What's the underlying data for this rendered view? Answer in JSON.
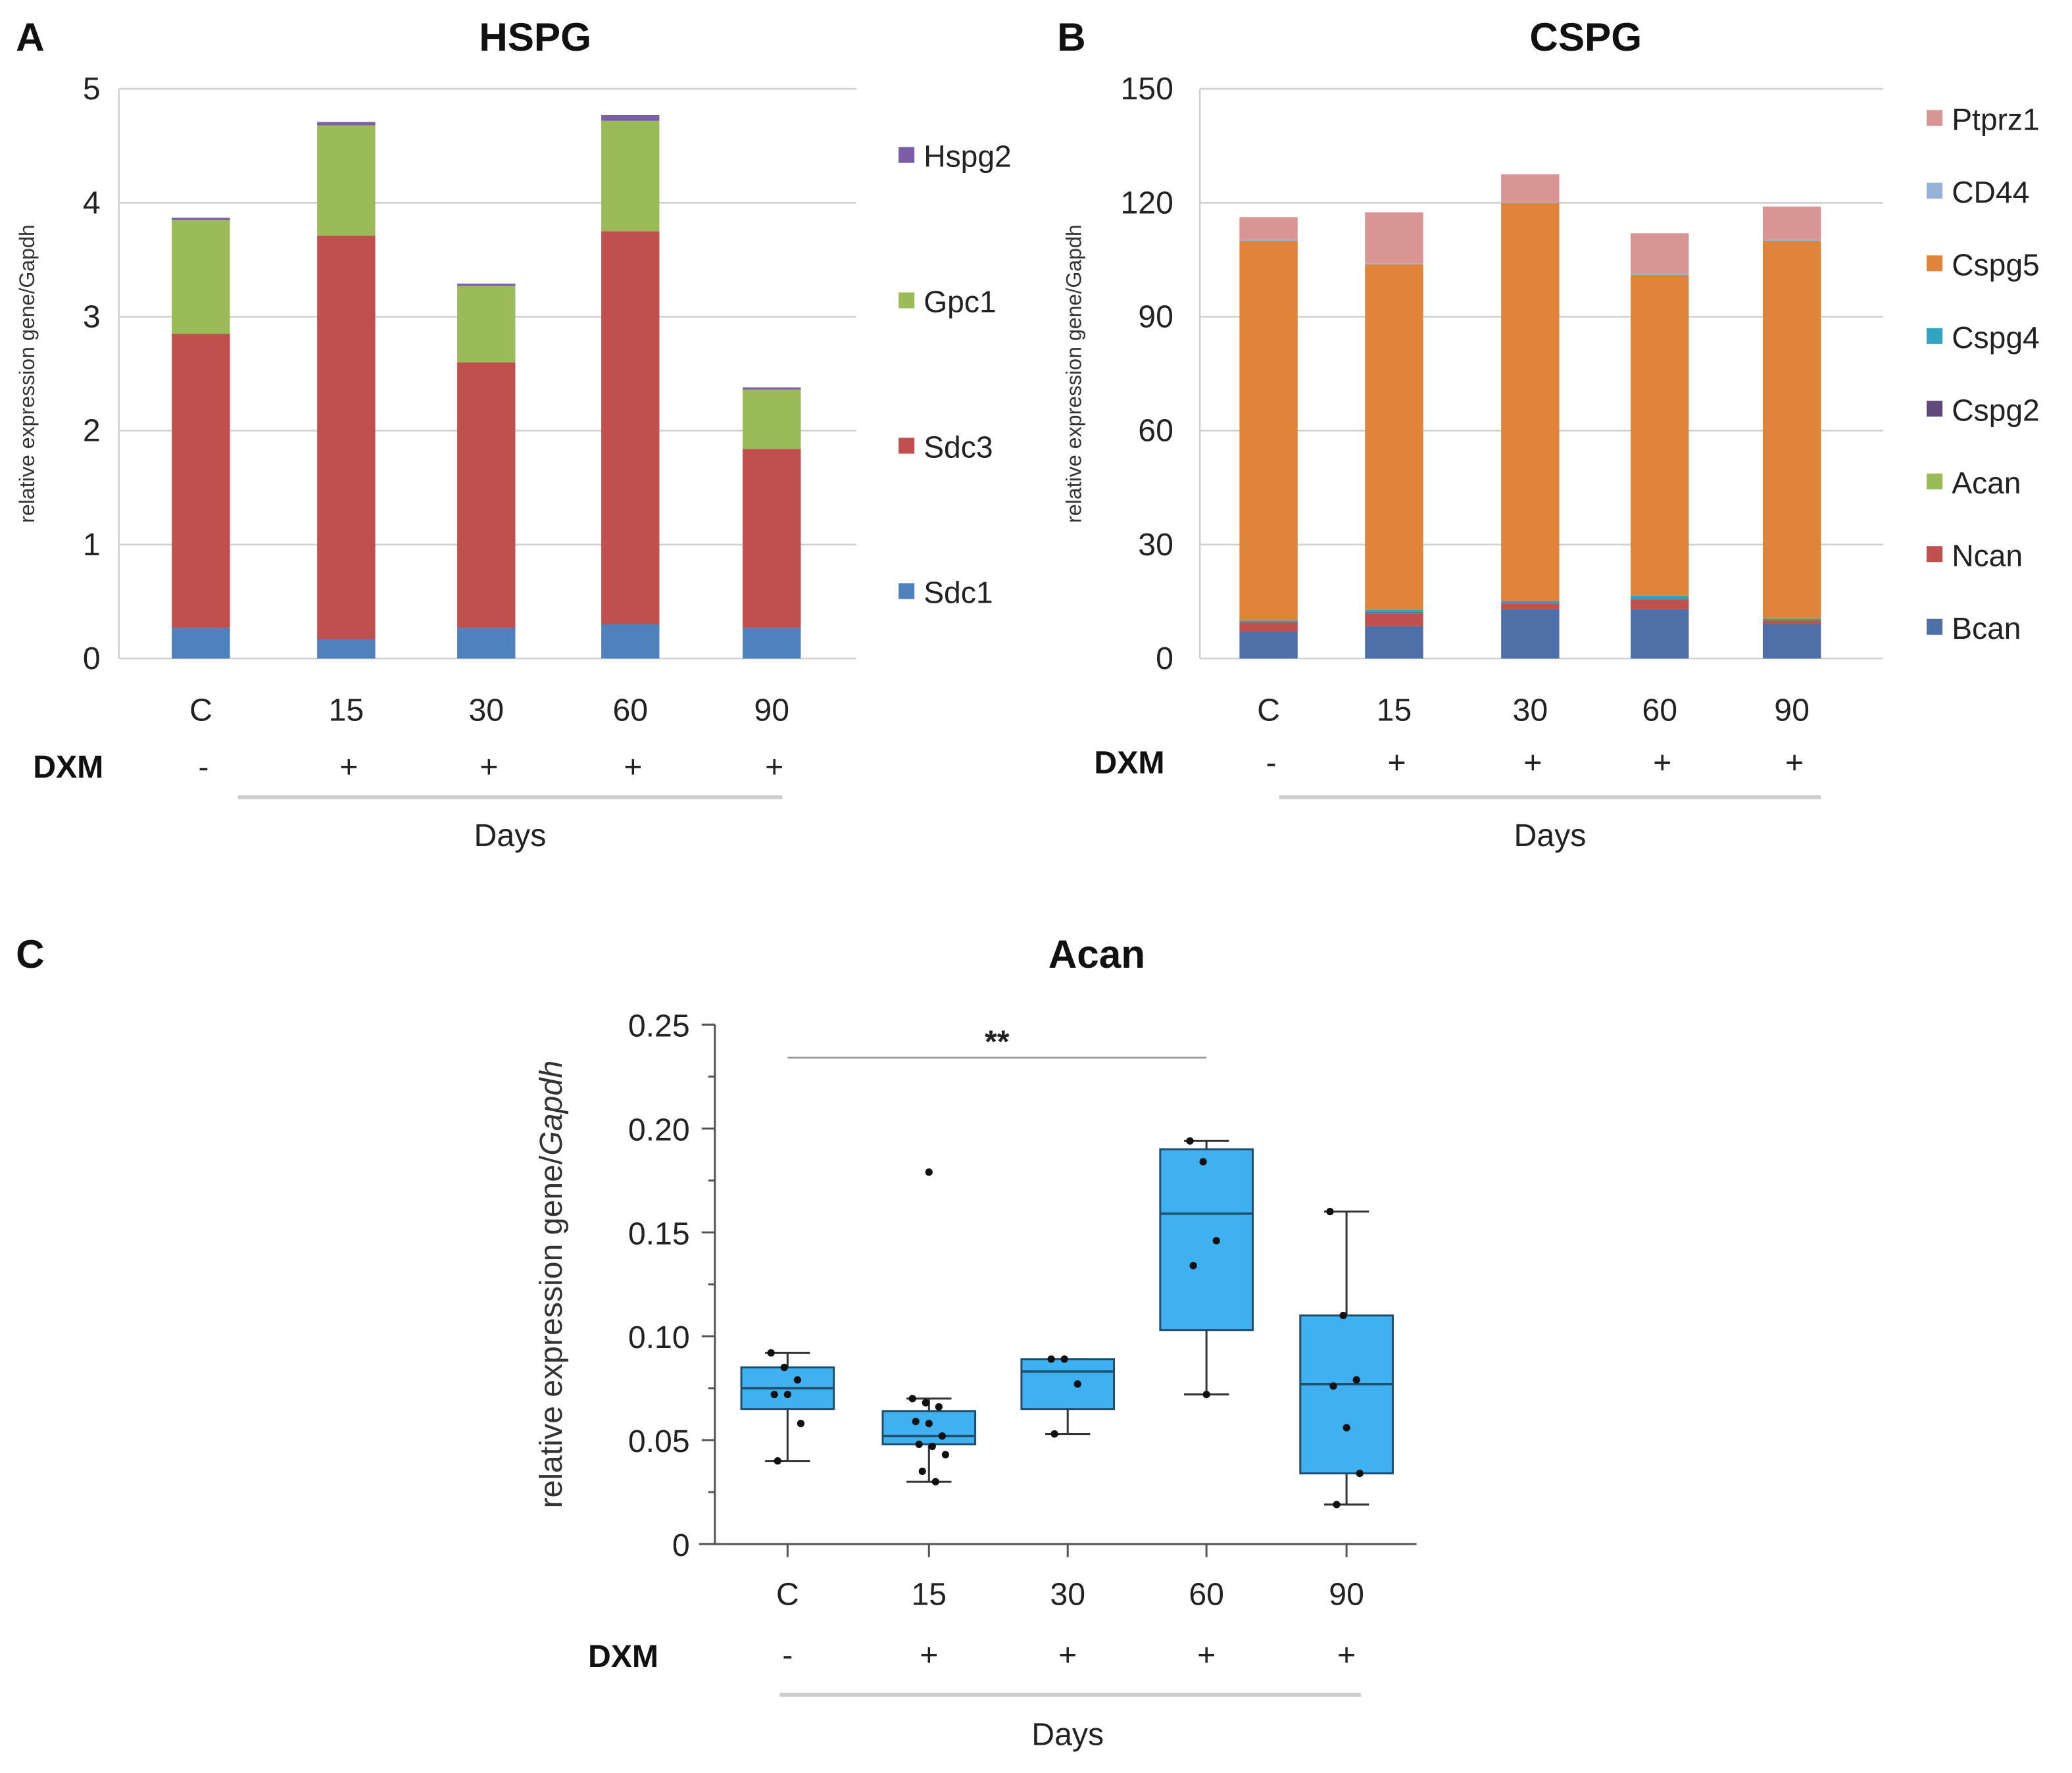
{
  "colors": {
    "Hspg2": "#7b5ea7",
    "Gpc1": "#9bbb59",
    "Sdc3": "#c0504d",
    "Sdc1": "#4f81bd",
    "Ptprz1": "#d99594",
    "CD44": "#95b3d7",
    "Cspg5": "#e0843a",
    "Cspg4": "#31a4c4",
    "Cspg2": "#604a7b",
    "Acan": "#9bbb59",
    "Ncan": "#c0504d",
    "Bcan": "#4f6fa8",
    "box_fill": "#3fb1f0",
    "box_stroke": "#1f4e6e"
  },
  "chart_data": [
    {
      "panel": "A",
      "type": "bar",
      "stacked": true,
      "title": "HSPG",
      "ylabel": "relative expression gene/Gapdh",
      "ylim": [
        0,
        5
      ],
      "yticks": [
        "0",
        "1",
        "2",
        "3",
        "4",
        "5"
      ],
      "categories": [
        "C",
        "15",
        "30",
        "60",
        "90"
      ],
      "dxm": [
        "-",
        "+",
        "+",
        "+",
        "+"
      ],
      "dxm_label": "DXM",
      "xlabel": "Days",
      "grid": true,
      "legend_position": "right",
      "legend": [
        "Hspg2",
        "Gpc1",
        "Sdc3",
        "Sdc1"
      ],
      "series": [
        {
          "name": "Sdc1",
          "values": [
            0.27,
            0.17,
            0.27,
            0.3,
            0.27
          ]
        },
        {
          "name": "Sdc3",
          "values": [
            2.58,
            3.54,
            2.33,
            3.45,
            1.57
          ]
        },
        {
          "name": "Gpc1",
          "values": [
            1.0,
            0.97,
            0.67,
            0.97,
            0.52
          ]
        },
        {
          "name": "Hspg2",
          "values": [
            0.02,
            0.03,
            0.02,
            0.05,
            0.02
          ]
        }
      ]
    },
    {
      "panel": "B",
      "type": "bar",
      "stacked": true,
      "title": "CSPG",
      "ylabel": "relative expression gene/Gapdh",
      "ylim": [
        0,
        150
      ],
      "yticks": [
        "0",
        "30",
        "60",
        "90",
        "120",
        "150"
      ],
      "categories": [
        "C",
        "15",
        "30",
        "60",
        "90"
      ],
      "dxm": [
        "-",
        "+",
        "+",
        "+",
        "+"
      ],
      "dxm_label": "DXM",
      "xlabel": "Days",
      "grid": true,
      "legend_position": "right",
      "legend": [
        "Ptprz1",
        "CD44",
        "Cspg5",
        "Cspg4",
        "Cspg2",
        "Acan",
        "Ncan",
        "Bcan"
      ],
      "series": [
        {
          "name": "Bcan",
          "values": [
            7,
            8.5,
            13,
            13,
            9
          ]
        },
        {
          "name": "Ncan",
          "values": [
            2.5,
            3.5,
            1.5,
            2.5,
            1
          ]
        },
        {
          "name": "Acan",
          "values": [
            0.1,
            0.1,
            0.1,
            0.1,
            0.1
          ]
        },
        {
          "name": "Cspg2",
          "values": [
            0.1,
            0.1,
            0.1,
            0.1,
            0.1
          ]
        },
        {
          "name": "Cspg4",
          "values": [
            0.3,
            0.6,
            0.5,
            0.8,
            0.3
          ]
        },
        {
          "name": "Cspg5",
          "values": [
            100,
            91,
            104.8,
            84.5,
            99.5
          ]
        },
        {
          "name": "CD44",
          "values": [
            0.2,
            0.2,
            0.2,
            0.2,
            0.2
          ]
        },
        {
          "name": "Ptprz1",
          "values": [
            6,
            13.5,
            7.3,
            10.8,
            8.8
          ]
        }
      ]
    },
    {
      "panel": "C",
      "type": "box",
      "title": "Acan",
      "ylabel_prefix": "relative expression gene/",
      "ylabel_italic": "Gapdh",
      "ylim": [
        0,
        0.25
      ],
      "yticks": [
        "0",
        "0.05",
        "0.10",
        "0.15",
        "0.20",
        "0.25"
      ],
      "categories": [
        "C",
        "15",
        "30",
        "60",
        "90"
      ],
      "dxm": [
        "-",
        "+",
        "+",
        "+",
        "+"
      ],
      "dxm_label": "DXM",
      "xlabel": "Days",
      "significance": {
        "from": "C",
        "to": "60",
        "label": "**"
      },
      "boxes": [
        {
          "min": 0.04,
          "q1": 0.065,
          "median": 0.075,
          "q3": 0.085,
          "max": 0.092,
          "points": [
            0.092,
            0.085,
            0.079,
            0.072,
            0.072,
            0.058,
            0.04
          ]
        },
        {
          "min": 0.03,
          "q1": 0.048,
          "median": 0.052,
          "q3": 0.064,
          "max": 0.07,
          "outliers": [
            0.179
          ],
          "points": [
            0.07,
            0.068,
            0.066,
            0.059,
            0.058,
            0.052,
            0.048,
            0.047,
            0.043,
            0.035,
            0.03
          ]
        },
        {
          "min": 0.053,
          "q1": 0.065,
          "median": 0.083,
          "q3": 0.089,
          "max": 0.089,
          "points": [
            0.089,
            0.089,
            0.077,
            0.053
          ]
        },
        {
          "min": 0.072,
          "q1": 0.103,
          "median": 0.159,
          "q3": 0.19,
          "max": 0.194,
          "points": [
            0.194,
            0.184,
            0.146,
            0.134,
            0.072
          ]
        },
        {
          "min": 0.019,
          "q1": 0.034,
          "median": 0.077,
          "q3": 0.11,
          "max": 0.16,
          "points": [
            0.16,
            0.11,
            0.079,
            0.076,
            0.056,
            0.034,
            0.019
          ]
        }
      ]
    }
  ]
}
